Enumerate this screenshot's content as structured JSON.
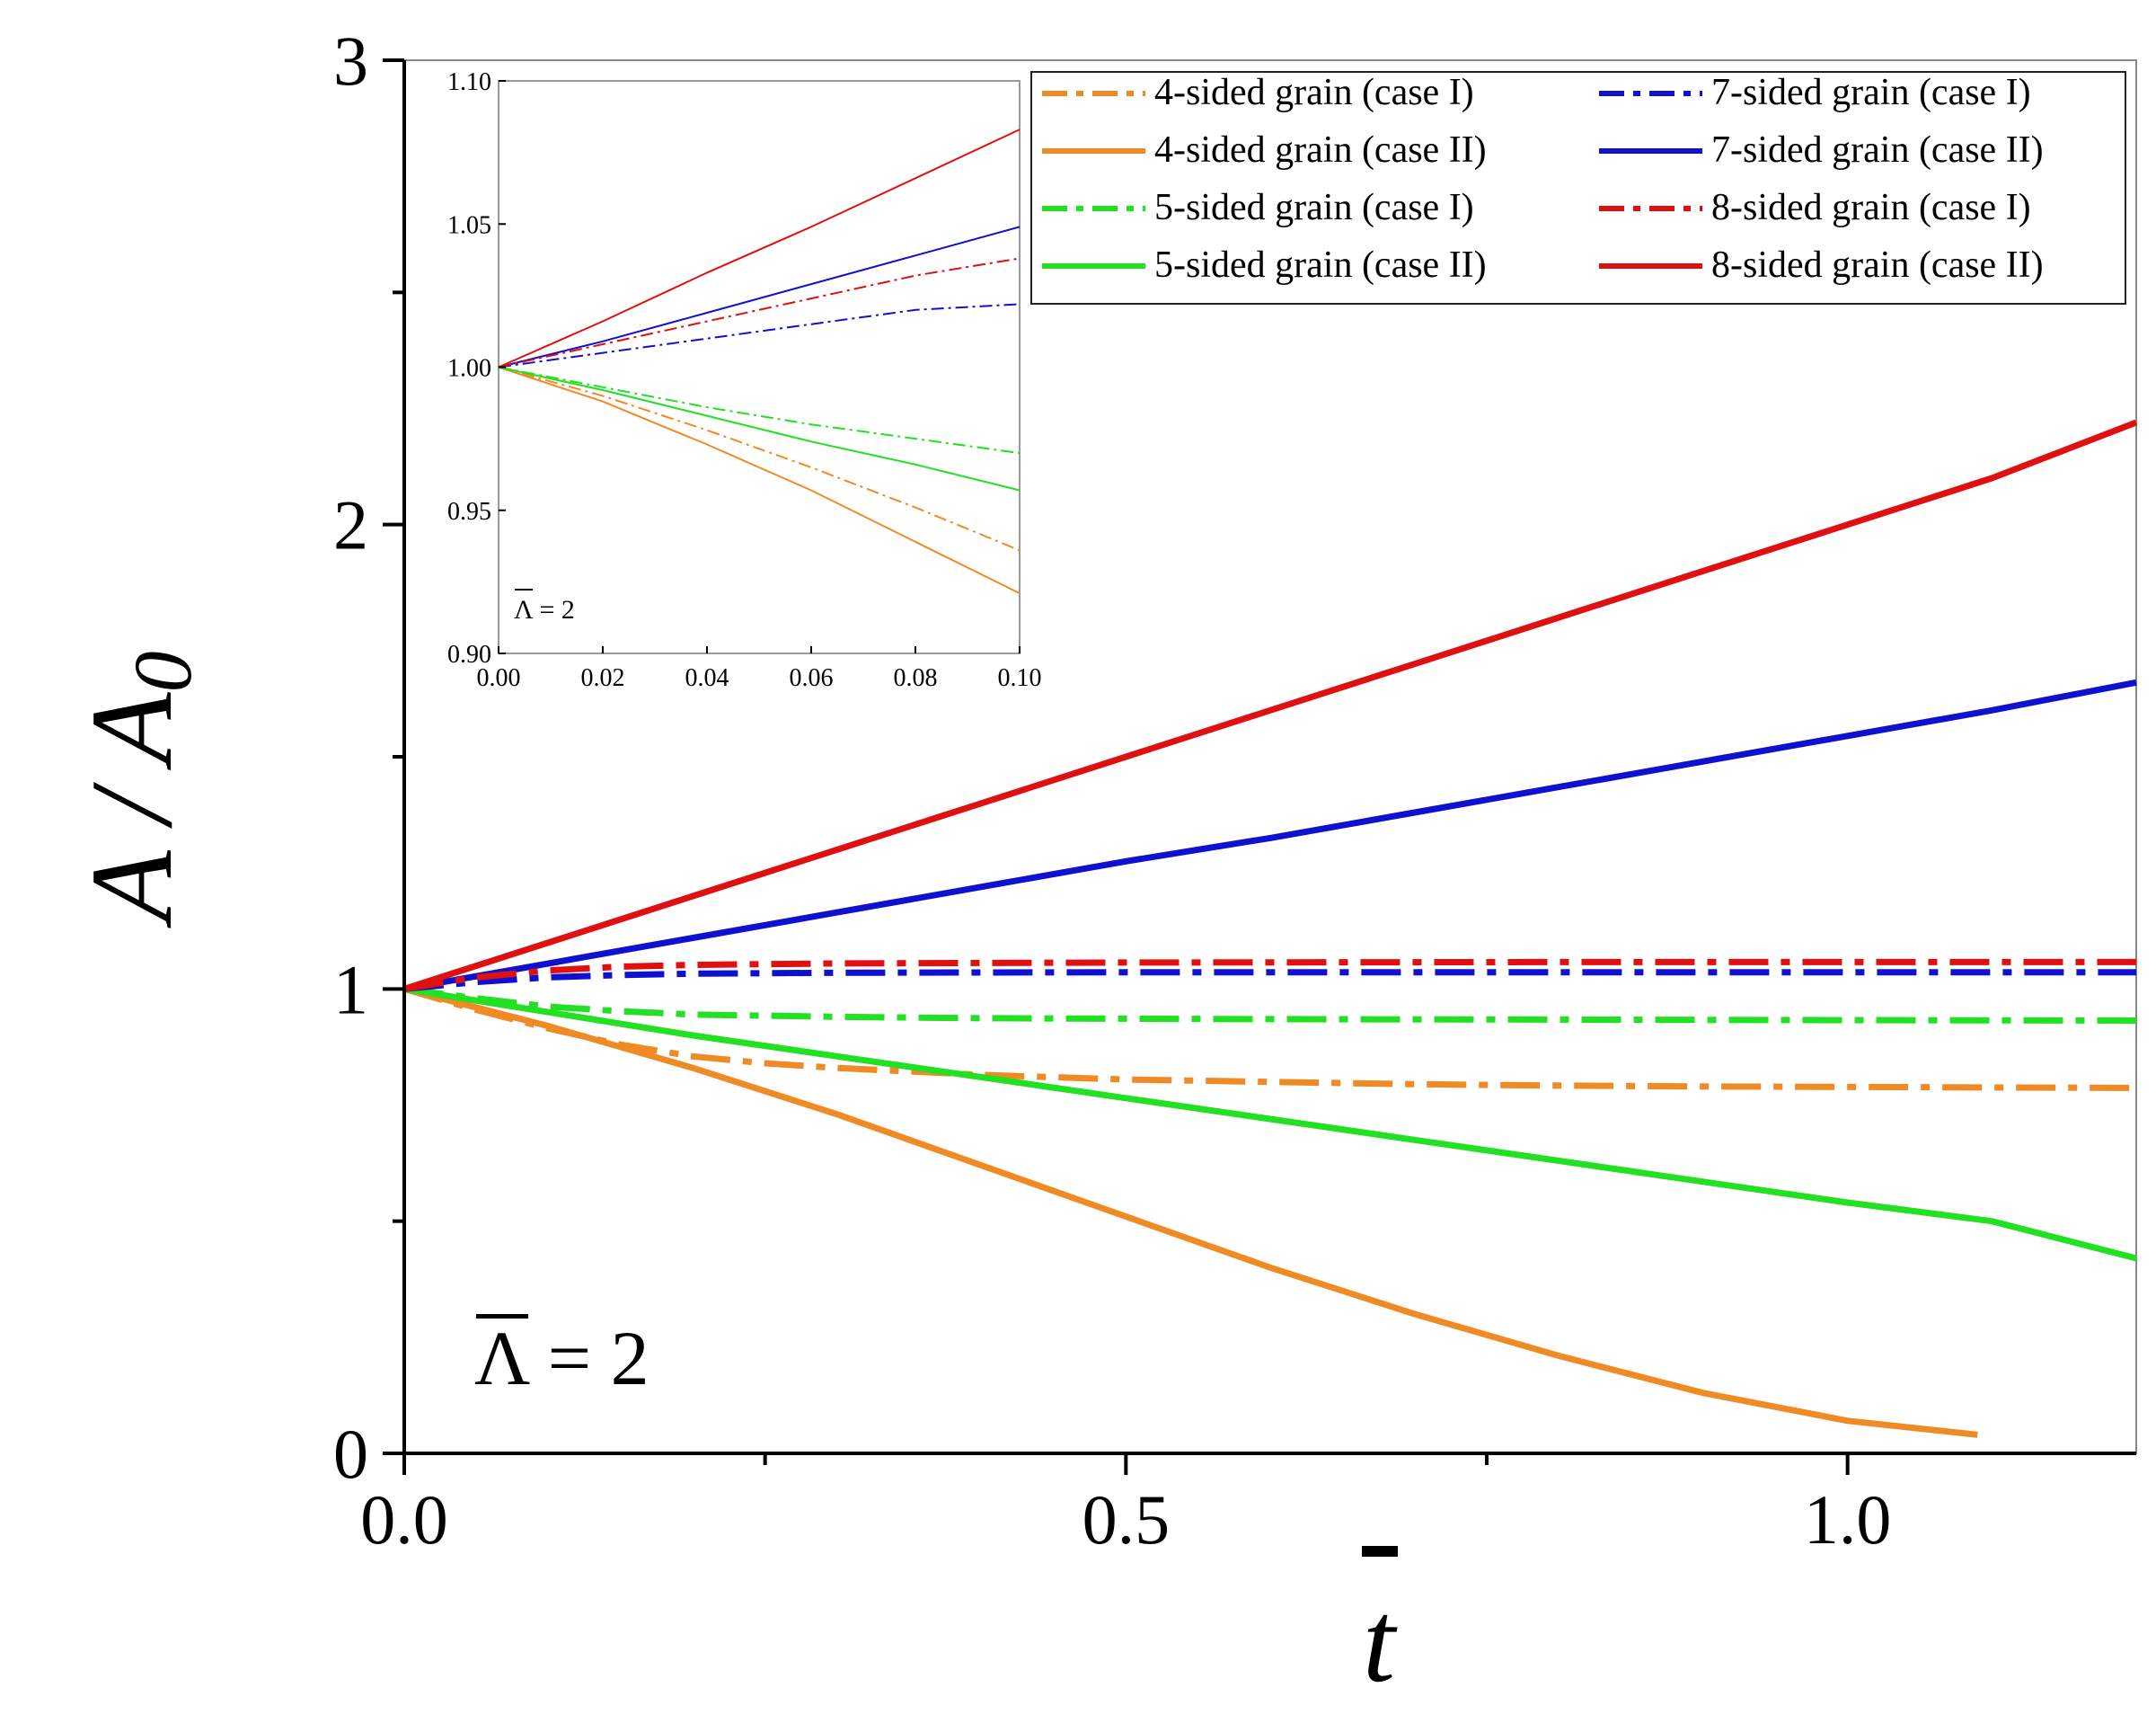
{
  "chart_data": {
    "type": "line",
    "xlabel": "t",
    "ylabel": "A / A0",
    "ylabel_main": "A / A",
    "ylabel_subscript": "0",
    "xlim": [
      0,
      1.2
    ],
    "ylim": [
      0,
      3
    ],
    "xticks": [
      0.0,
      0.5,
      1.0
    ],
    "xtick_labels": [
      "0.0",
      "0.5",
      "1.0"
    ],
    "yticks": [
      0,
      1,
      2,
      3
    ],
    "ytick_labels": [
      "0",
      "1",
      "2",
      "3"
    ],
    "annotation": "Λ = 2",
    "legend_position": "top-right",
    "series": [
      {
        "name": "4-sided grain (case I)",
        "color": "#F08A24",
        "style": "dashdot",
        "x": [
          0,
          0.05,
          0.1,
          0.15,
          0.2,
          0.25,
          0.3,
          0.4,
          0.5,
          0.6,
          0.7,
          0.8,
          0.9,
          1.0,
          1.1,
          1.2
        ],
        "y": [
          1,
          0.955,
          0.915,
          0.88,
          0.855,
          0.84,
          0.83,
          0.815,
          0.805,
          0.8,
          0.795,
          0.792,
          0.79,
          0.789,
          0.788,
          0.787
        ]
      },
      {
        "name": "4-sided grain (case II)",
        "color": "#F08A24",
        "style": "solid",
        "x": [
          0,
          0.1,
          0.2,
          0.3,
          0.4,
          0.5,
          0.6,
          0.7,
          0.8,
          0.9,
          1.0,
          1.09
        ],
        "y": [
          1,
          0.92,
          0.83,
          0.73,
          0.62,
          0.51,
          0.4,
          0.3,
          0.21,
          0.13,
          0.07,
          0.04
        ]
      },
      {
        "name": "5-sided grain (case I)",
        "color": "#22E022",
        "style": "dashdot",
        "x": [
          0,
          0.05,
          0.1,
          0.15,
          0.2,
          0.3,
          0.4,
          0.6,
          0.8,
          1.0,
          1.2
        ],
        "y": [
          1,
          0.98,
          0.962,
          0.952,
          0.945,
          0.94,
          0.937,
          0.935,
          0.934,
          0.933,
          0.932
        ]
      },
      {
        "name": "5-sided grain (case II)",
        "color": "#22E022",
        "style": "solid",
        "x": [
          0,
          0.1,
          0.2,
          0.3,
          0.4,
          0.5,
          0.6,
          0.7,
          0.8,
          0.9,
          1.0,
          1.1,
          1.2
        ],
        "y": [
          1,
          0.95,
          0.9,
          0.855,
          0.81,
          0.765,
          0.72,
          0.675,
          0.63,
          0.585,
          0.54,
          0.5,
          0.42
        ]
      },
      {
        "name": "7-sided grain (case I)",
        "color": "#1010D0",
        "style": "dashdot",
        "x": [
          0,
          0.05,
          0.1,
          0.15,
          0.2,
          0.3,
          0.5,
          0.8,
          1.2
        ],
        "y": [
          1,
          1.015,
          1.025,
          1.03,
          1.033,
          1.035,
          1.036,
          1.036,
          1.036
        ]
      },
      {
        "name": "7-sided grain (case II)",
        "color": "#1010D0",
        "style": "solid",
        "x": [
          0,
          0.1,
          0.2,
          0.3,
          0.4,
          0.5,
          0.6,
          0.7,
          0.8,
          0.9,
          1.0,
          1.1,
          1.2
        ],
        "y": [
          1,
          1.055,
          1.11,
          1.165,
          1.22,
          1.275,
          1.325,
          1.38,
          1.435,
          1.49,
          1.545,
          1.6,
          1.66
        ]
      },
      {
        "name": "8-sided grain (case I)",
        "color": "#E01010",
        "style": "dashdot",
        "x": [
          0,
          0.05,
          0.1,
          0.15,
          0.2,
          0.3,
          0.5,
          0.8,
          1.2
        ],
        "y": [
          1,
          1.025,
          1.04,
          1.048,
          1.052,
          1.055,
          1.057,
          1.058,
          1.058
        ]
      },
      {
        "name": "8-sided grain (case II)",
        "color": "#E01010",
        "style": "solid",
        "x": [
          0,
          0.1,
          0.2,
          0.3,
          0.4,
          0.5,
          0.6,
          0.7,
          0.8,
          0.9,
          1.0,
          1.1,
          1.2
        ],
        "y": [
          1,
          1.1,
          1.2,
          1.3,
          1.4,
          1.5,
          1.6,
          1.7,
          1.8,
          1.9,
          2.0,
          2.1,
          2.22
        ]
      }
    ],
    "inset": {
      "xlim": [
        0,
        0.1
      ],
      "ylim": [
        0.9,
        1.1
      ],
      "xticks": [
        0,
        0.02,
        0.04,
        0.06,
        0.08,
        0.1
      ],
      "xtick_labels": [
        "0.00",
        "0.02",
        "0.04",
        "0.06",
        "0.08",
        "0.10"
      ],
      "yticks": [
        0.9,
        0.95,
        1.0,
        1.05,
        1.1
      ],
      "ytick_labels": [
        "0.90",
        "0.95",
        "1.00",
        "1.05",
        "1.10"
      ],
      "annotation": "Λ = 2",
      "series": [
        {
          "name": "4-sided grain (case I)",
          "color": "#F08A24",
          "style": "dashdot",
          "x": [
            0,
            0.02,
            0.04,
            0.06,
            0.08,
            0.1
          ],
          "y": [
            1,
            0.99,
            0.978,
            0.965,
            0.951,
            0.936
          ]
        },
        {
          "name": "4-sided grain (case II)",
          "color": "#F08A24",
          "style": "solid",
          "x": [
            0,
            0.02,
            0.04,
            0.06,
            0.08,
            0.1
          ],
          "y": [
            1,
            0.988,
            0.973,
            0.957,
            0.939,
            0.921
          ]
        },
        {
          "name": "5-sided grain (case I)",
          "color": "#22E022",
          "style": "dashdot",
          "x": [
            0,
            0.02,
            0.04,
            0.06,
            0.08,
            0.1
          ],
          "y": [
            1,
            0.993,
            0.986,
            0.98,
            0.975,
            0.97
          ]
        },
        {
          "name": "5-sided grain (case II)",
          "color": "#22E022",
          "style": "solid",
          "x": [
            0,
            0.02,
            0.04,
            0.06,
            0.08,
            0.1
          ],
          "y": [
            1,
            0.992,
            0.983,
            0.974,
            0.966,
            0.957
          ]
        },
        {
          "name": "7-sided grain (case I)",
          "color": "#1010D0",
          "style": "dashdot",
          "x": [
            0,
            0.02,
            0.04,
            0.06,
            0.08,
            0.1
          ],
          "y": [
            1,
            1.005,
            1.01,
            1.015,
            1.02,
            1.022
          ]
        },
        {
          "name": "7-sided grain (case II)",
          "color": "#1010D0",
          "style": "solid",
          "x": [
            0,
            0.02,
            0.04,
            0.06,
            0.08,
            0.1
          ],
          "y": [
            1,
            1.009,
            1.019,
            1.029,
            1.039,
            1.049
          ]
        },
        {
          "name": "8-sided grain (case I)",
          "color": "#E01010",
          "style": "dashdot",
          "x": [
            0,
            0.02,
            0.04,
            0.06,
            0.08,
            0.1
          ],
          "y": [
            1,
            1.008,
            1.016,
            1.024,
            1.032,
            1.038
          ]
        },
        {
          "name": "8-sided grain (case II)",
          "color": "#E01010",
          "style": "solid",
          "x": [
            0,
            0.02,
            0.04,
            0.06,
            0.08,
            0.1
          ],
          "y": [
            1,
            1.016,
            1.033,
            1.049,
            1.066,
            1.083
          ]
        }
      ]
    }
  }
}
